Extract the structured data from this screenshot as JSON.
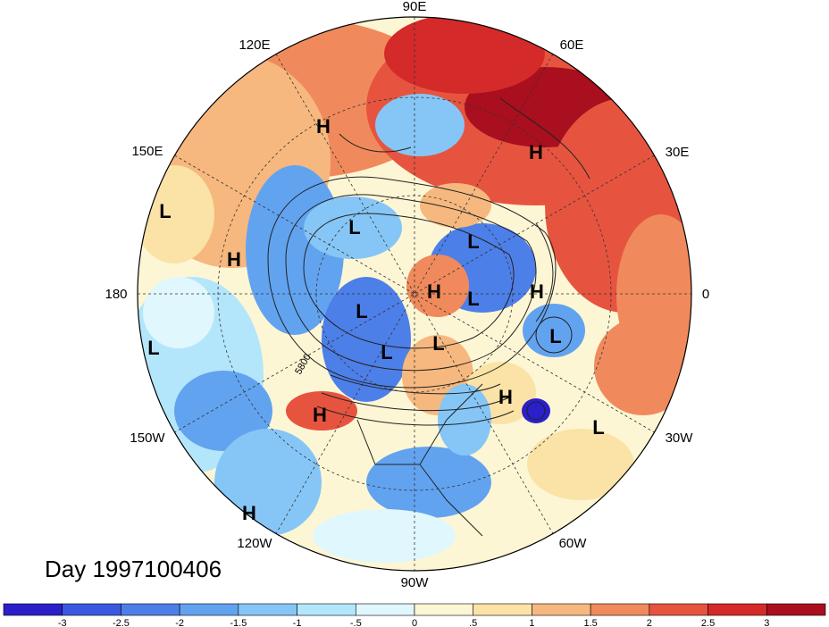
{
  "title": "Day 1997100406",
  "longitude_labels": [
    "90E",
    "60E",
    "30E",
    "0",
    "30W",
    "60W",
    "90W",
    "120W",
    "150W",
    "180",
    "150E",
    "120E"
  ],
  "contour_label": "5800",
  "pressure_centers": [
    {
      "type": "H",
      "region": "east-siberia"
    },
    {
      "type": "H",
      "region": "western-russia"
    },
    {
      "type": "L",
      "region": "north-pacific"
    },
    {
      "type": "H",
      "region": "bering-sea"
    },
    {
      "type": "L",
      "region": "east-siberian-sea"
    },
    {
      "type": "L",
      "region": "kara-sea"
    },
    {
      "type": "H",
      "region": "north-pole"
    },
    {
      "type": "L",
      "region": "barents-sea"
    },
    {
      "type": "H",
      "region": "scandinavia"
    },
    {
      "type": "L",
      "region": "beaufort-sea"
    },
    {
      "type": "L",
      "region": "north-atlantic-east"
    },
    {
      "type": "L",
      "region": "hudson-bay"
    },
    {
      "type": "L",
      "region": "greenland"
    },
    {
      "type": "L",
      "region": "central-pacific"
    },
    {
      "type": "H",
      "region": "pacific-northwest"
    },
    {
      "type": "H",
      "region": "mid-atlantic"
    },
    {
      "type": "L",
      "region": "east-atlantic"
    },
    {
      "type": "H",
      "region": "east-pacific-south"
    }
  ],
  "colorbar": {
    "ticks": [
      "-3",
      "-2.5",
      "-2",
      "-1.5",
      "-1",
      "-.5",
      "0",
      ".5",
      "1",
      "1.5",
      "2",
      "2.5",
      "3"
    ],
    "colors": [
      "#2a1fc9",
      "#3b58e0",
      "#4d7fe8",
      "#62a3f0",
      "#86c6f6",
      "#b3e6fb",
      "#e0f7fd",
      "#fdf6d4",
      "#fbe2a6",
      "#f6b87e",
      "#f08a5c",
      "#e65440",
      "#d42a2a",
      "#a90f1e"
    ]
  }
}
